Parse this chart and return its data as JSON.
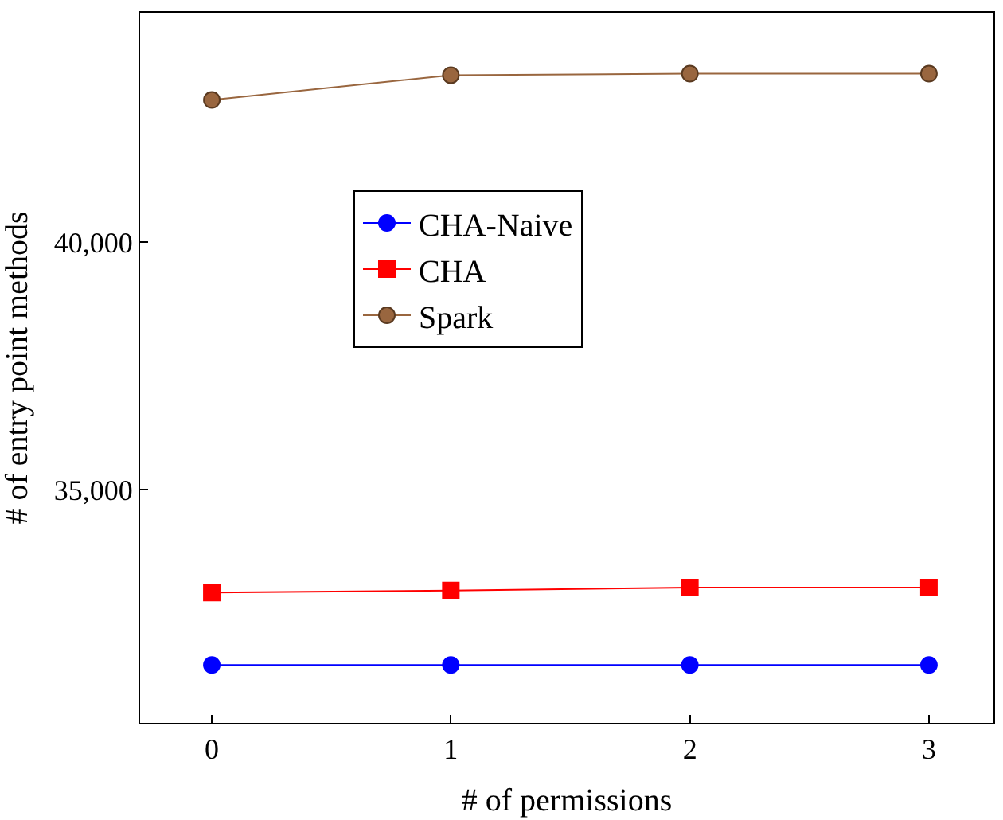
{
  "chart_data": {
    "type": "line",
    "xlabel": "# of permissions",
    "ylabel": "# of entry point methods",
    "x": [
      0,
      1,
      2,
      3
    ],
    "series": [
      {
        "name": "CHA-Naive",
        "color": "#0000ff",
        "marker": "circle",
        "values": [
          31470,
          31470,
          31470,
          31470
        ]
      },
      {
        "name": "CHA",
        "color": "#ff0000",
        "marker": "square",
        "values": [
          32930,
          32970,
          33030,
          33030
        ]
      },
      {
        "name": "Spark",
        "color": "#99663f",
        "marker": "circle",
        "values": [
          42870,
          43370,
          43400,
          43400
        ]
      }
    ],
    "xlim": [
      -0.3,
      3.27
    ],
    "ylim": [
      30300,
      44630
    ],
    "xticks": [
      0,
      1,
      2,
      3
    ],
    "yticks": [
      {
        "value": 35000,
        "label": "35,000"
      },
      {
        "value": 40000,
        "label": "40,000"
      }
    ],
    "legend": "center left",
    "line_style": "solid"
  }
}
